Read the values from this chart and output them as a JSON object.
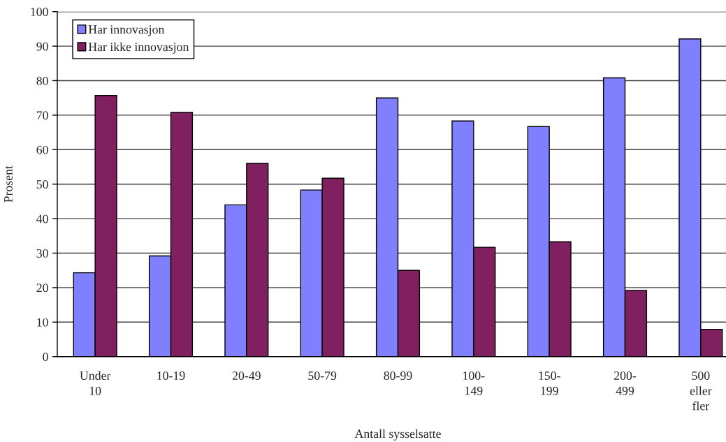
{
  "chart_data": {
    "type": "bar",
    "xlabel": "Antall sysselsatte",
    "ylabel": "Prosent",
    "categories": [
      "Under\n10",
      "10-19",
      "20-49",
      "50-79",
      "80-99",
      "100-\n149",
      "150-\n199",
      "200-\n499",
      "500\neller\nfler"
    ],
    "series": [
      {
        "name": "Har innovasjon",
        "color": "#8080ff",
        "values": [
          24.3,
          29.2,
          44,
          48.3,
          75,
          68.3,
          66.7,
          80.8,
          92.1
        ]
      },
      {
        "name": "Har ikke innovasjon",
        "color": "#802060",
        "values": [
          75.7,
          70.8,
          56,
          51.7,
          25,
          31.7,
          33.3,
          19.2,
          7.9
        ]
      }
    ],
    "ylim": [
      0,
      100
    ],
    "yticks": [
      0,
      10,
      20,
      30,
      40,
      50,
      60,
      70,
      80,
      90,
      100
    ],
    "grid": "y",
    "legend": "top left"
  }
}
